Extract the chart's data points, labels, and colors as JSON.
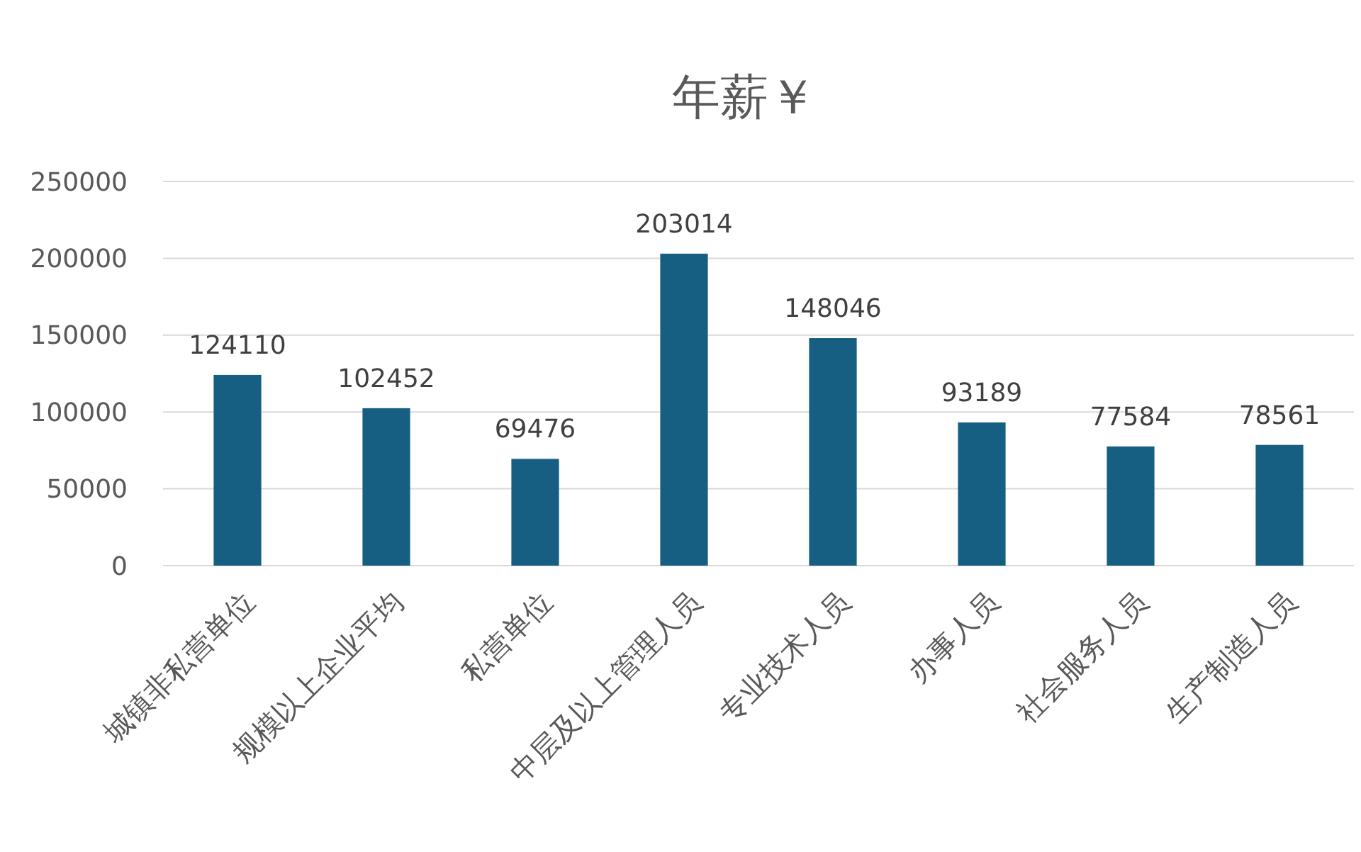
{
  "chart_data": {
    "type": "bar",
    "title": "年薪￥",
    "categories": [
      "城镇非私营单位",
      "规模以上企业平均",
      "私营单位",
      "中层及以上管理人员",
      "专业技术人员",
      "办事人员",
      "社会服务人员",
      "生产制造人员"
    ],
    "values": [
      124110,
      102452,
      69476,
      203014,
      148046,
      93189,
      77584,
      78561
    ],
    "color": "#175f82",
    "ylim": [
      0,
      250000
    ],
    "yticks": [
      0,
      50000,
      100000,
      150000,
      200000,
      250000
    ],
    "grid": "y",
    "data_labels": true
  }
}
